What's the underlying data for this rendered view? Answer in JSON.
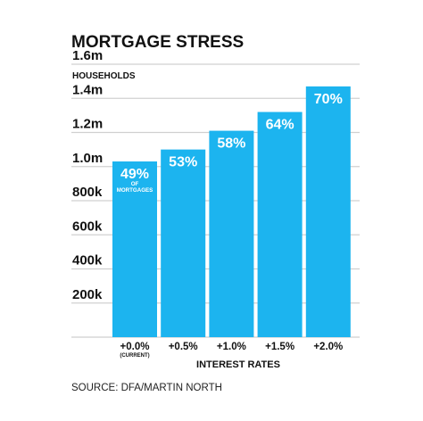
{
  "title": "MORTGAGE STRESS",
  "source": "SOURCE: DFA/MARTIN NORTH",
  "colors": {
    "bar": "#1cb4ef",
    "grid": "#d0d0d0",
    "text": "#111111"
  },
  "chart_data": {
    "type": "bar",
    "title": "MORTGAGE STRESS",
    "ylabel": "HOUSEHOLDS",
    "xlabel": "INTEREST RATES",
    "ylim": [
      0,
      1600000
    ],
    "grid": true,
    "y_ticks": [
      {
        "value": 200000,
        "label": "200k"
      },
      {
        "value": 400000,
        "label": "400k"
      },
      {
        "value": 600000,
        "label": "600k"
      },
      {
        "value": 800000,
        "label": "800k"
      },
      {
        "value": 1000000,
        "label": "1.0m"
      },
      {
        "value": 1200000,
        "label": "1.2m"
      },
      {
        "value": 1400000,
        "label": "1.4m"
      },
      {
        "value": 1600000,
        "label": "1.6m"
      }
    ],
    "categories": [
      "+0.0%",
      "+0.5%",
      "+1.0%",
      "+1.5%",
      "+2.0%"
    ],
    "category_notes": [
      "(CURRENT)",
      "",
      "",
      "",
      ""
    ],
    "values": [
      1030000,
      1100000,
      1210000,
      1320000,
      1470000
    ],
    "data_labels": [
      "49%",
      "53%",
      "58%",
      "64%",
      "70%"
    ],
    "data_label_notes": [
      "OF MORTGAGES",
      "",
      "",
      "",
      ""
    ]
  }
}
